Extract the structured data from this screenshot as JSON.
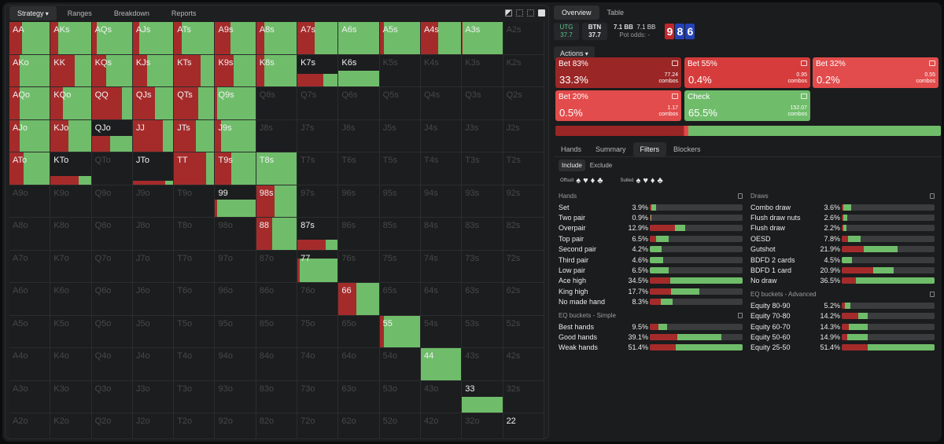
{
  "left_tabs": [
    "Strategy",
    "Ranges",
    "Breakdown",
    "Reports"
  ],
  "ranks": [
    "A",
    "K",
    "Q",
    "J",
    "T",
    "9",
    "8",
    "7",
    "6",
    "5",
    "4",
    "3",
    "2"
  ],
  "active_cells": {
    "AA": [
      0.32,
      0,
      0.68
    ],
    "AKs": [
      0.18,
      0,
      0.82
    ],
    "AQs": [
      0.12,
      0,
      0.88
    ],
    "AJs": [
      0.16,
      0,
      0.84
    ],
    "ATs": [
      0.2,
      0,
      0.8
    ],
    "A9s": [
      0.38,
      0,
      0.62
    ],
    "A8s": [
      0.2,
      0,
      0.8
    ],
    "A7s": [
      0.42,
      0,
      0.58
    ],
    "A6s": [
      0,
      0,
      1
    ],
    "A5s": [
      0.1,
      0,
      0.9
    ],
    "A4s": [
      0.42,
      0,
      0.58
    ],
    "A3s": [
      0.02,
      0,
      0.98
    ],
    "AKo": [
      0.25,
      0,
      0.75
    ],
    "KK": [
      0.6,
      0,
      0.4
    ],
    "KQs": [
      0.35,
      0,
      0.65
    ],
    "KJs": [
      0.35,
      0,
      0.65
    ],
    "KTs": [
      0.65,
      0,
      0.35
    ],
    "K9s": [
      0.45,
      0,
      0.55
    ],
    "K8s": [
      0.2,
      0,
      0.8
    ],
    "K7s": {
      "mix": [
        0.65,
        0.35
      ],
      "h": 0.4
    },
    "K6s": {
      "mix": [
        0,
        1
      ],
      "h": 0.5
    },
    "AQo": [
      0.25,
      0,
      0.75
    ],
    "KQo": [
      0.3,
      0,
      0.7
    ],
    "QQ": [
      0.75,
      0,
      0.25
    ],
    "QJs": [
      0.55,
      0,
      0.45
    ],
    "QTs": [
      0.6,
      0,
      0.4
    ],
    "Q9s": [
      0.05,
      0,
      0.95
    ],
    "AJo": [
      0.25,
      0,
      0.75
    ],
    "KJo": [
      0.45,
      0,
      0.55
    ],
    "QJo": {
      "mix": [
        0.45,
        0.55
      ],
      "h": 0.5
    },
    "JJ": [
      0.75,
      0,
      0.25
    ],
    "JTs": [
      0.55,
      0,
      0.45
    ],
    "J9s": [
      0.15,
      0,
      0.85
    ],
    "ATo": [
      0.35,
      0,
      0.65
    ],
    "KTo": {
      "mix": [
        0.7,
        0.3
      ],
      "h": 0.25
    },
    "JTo": {
      "mix": [
        0.8,
        0.2
      ],
      "h": 0.1
    },
    "TT": [
      0.8,
      0,
      0.2
    ],
    "T9s": [
      0.4,
      0,
      0.6
    ],
    "T8s": [
      0,
      0,
      1
    ],
    "99": {
      "mix": [
        0.05,
        0.95
      ],
      "h": 0.55
    },
    "98s": [
      0.45,
      0,
      0.55
    ],
    "88": {
      "mix": [
        0.4,
        0.6
      ],
      "h": 1
    },
    "87s": {
      "mix": [
        0.7,
        0.3
      ],
      "h": 0.3
    },
    "77": {
      "mix": [
        0.05,
        0.95
      ],
      "h": 0.75
    },
    "66": {
      "mix": [
        0.45,
        0.55
      ],
      "h": 1
    },
    "55": {
      "mix": [
        0.1,
        0.9
      ],
      "h": 1
    },
    "44": {
      "mix": [
        0,
        1
      ],
      "h": 1
    },
    "33": {
      "mix": [
        0,
        1
      ],
      "h": 0.5
    },
    "22": {
      "mix": [
        0,
        1
      ],
      "h": 0.07
    }
  },
  "white_labels": [
    "K7s",
    "K6s",
    "QJo",
    "KTo",
    "JTo",
    "87s",
    "33",
    "22"
  ],
  "right_tabs": [
    "Overview",
    "Table"
  ],
  "positions": [
    {
      "name": "UTG",
      "stack": "37.7"
    },
    {
      "name": "BTN",
      "stack": "37.7"
    }
  ],
  "pot": {
    "bb": "7.1 BB",
    "bb2": "7.1 BB",
    "odds_label": "Pot odds:",
    "odds_value": "-"
  },
  "board": [
    {
      "rank": "9",
      "color": "#c0272d"
    },
    {
      "rank": "8",
      "color": "#2442b8"
    },
    {
      "rank": "6",
      "color": "#2442b8"
    }
  ],
  "actions_label": "Actions",
  "actions": [
    {
      "name": "Bet 83%",
      "pct": "33.3%",
      "combos": "77.24",
      "combos_label": "combos",
      "color": "#9b2626"
    },
    {
      "name": "Bet 55%",
      "pct": "0.4%",
      "combos": "0.95",
      "combos_label": "combos",
      "color": "#d63c3c"
    },
    {
      "name": "Bet 32%",
      "pct": "0.2%",
      "combos": "0.55",
      "combos_label": "combos",
      "color": "#e34c4c"
    },
    {
      "name": "Bet 20%",
      "pct": "0.5%",
      "combos": "1.17",
      "combos_label": "combos",
      "color": "#e34c4c"
    },
    {
      "name": "Check",
      "pct": "65.5%",
      "combos": "152.07",
      "combos_label": "combos",
      "color": "#6fbd6a"
    }
  ],
  "filter_tabs": [
    "Hands",
    "Summary",
    "Filters",
    "Blockers"
  ],
  "include_label": "Include",
  "exclude_label": "Exclude",
  "offsuit_label": "Offsuit",
  "suited_label": "Suited",
  "hands_title": "Hands",
  "hands": [
    {
      "name": "Set",
      "pct": "3.9%",
      "r": 0.02,
      "g": 0.05
    },
    {
      "name": "Two pair",
      "pct": "0.9%",
      "r": 0.01,
      "g": 0.01
    },
    {
      "name": "Overpair",
      "pct": "12.9%",
      "r": 0.27,
      "g": 0.11
    },
    {
      "name": "Top pair",
      "pct": "6.5%",
      "r": 0.07,
      "g": 0.13
    },
    {
      "name": "Second pair",
      "pct": "4.2%",
      "r": 0.0,
      "g": 0.13
    },
    {
      "name": "Third pair",
      "pct": "4.6%",
      "r": 0.0,
      "g": 0.14
    },
    {
      "name": "Low pair",
      "pct": "6.5%",
      "r": 0.0,
      "g": 0.2
    },
    {
      "name": "Ace high",
      "pct": "34.5%",
      "r": 0.22,
      "g": 0.78
    },
    {
      "name": "King high",
      "pct": "17.7%",
      "r": 0.23,
      "g": 0.3
    },
    {
      "name": "No made hand",
      "pct": "8.3%",
      "r": 0.12,
      "g": 0.13
    }
  ],
  "eq_simple_title": "EQ buckets - Simple",
  "eq_simple": [
    {
      "name": "Best hands",
      "pct": "9.5%",
      "r": 0.09,
      "g": 0.1
    },
    {
      "name": "Good hands",
      "pct": "39.1%",
      "r": 0.3,
      "g": 0.47
    },
    {
      "name": "Weak hands",
      "pct": "51.4%",
      "r": 0.28,
      "g": 0.72
    }
  ],
  "draws_title": "Draws",
  "draws": [
    {
      "name": "Combo draw",
      "pct": "3.6%",
      "r": 0.02,
      "g": 0.08
    },
    {
      "name": "Flush draw nuts",
      "pct": "2.6%",
      "r": 0.02,
      "g": 0.04
    },
    {
      "name": "Flush draw",
      "pct": "2.2%",
      "r": 0.02,
      "g": 0.03
    },
    {
      "name": "OESD",
      "pct": "7.8%",
      "r": 0.07,
      "g": 0.13
    },
    {
      "name": "Gutshot",
      "pct": "21.9%",
      "r": 0.24,
      "g": 0.36
    },
    {
      "name": "BDFD 2 cards",
      "pct": "4.5%",
      "r": 0.0,
      "g": 0.11
    },
    {
      "name": "BDFD 1 card",
      "pct": "20.9%",
      "r": 0.34,
      "g": 0.22
    },
    {
      "name": "No draw",
      "pct": "36.5%",
      "r": 0.15,
      "g": 0.85
    }
  ],
  "eq_adv_title": "EQ buckets - Advanced",
  "eq_adv": [
    {
      "name": "Equity 80-90",
      "pct": "5.2%",
      "r": 0.03,
      "g": 0.06
    },
    {
      "name": "Equity 70-80",
      "pct": "14.2%",
      "r": 0.18,
      "g": 0.1
    },
    {
      "name": "Equity 60-70",
      "pct": "14.3%",
      "r": 0.08,
      "g": 0.2
    },
    {
      "name": "Equity 50-60",
      "pct": "14.9%",
      "r": 0.06,
      "g": 0.22
    },
    {
      "name": "Equity 25-50",
      "pct": "51.4%",
      "r": 0.28,
      "g": 0.72
    }
  ]
}
